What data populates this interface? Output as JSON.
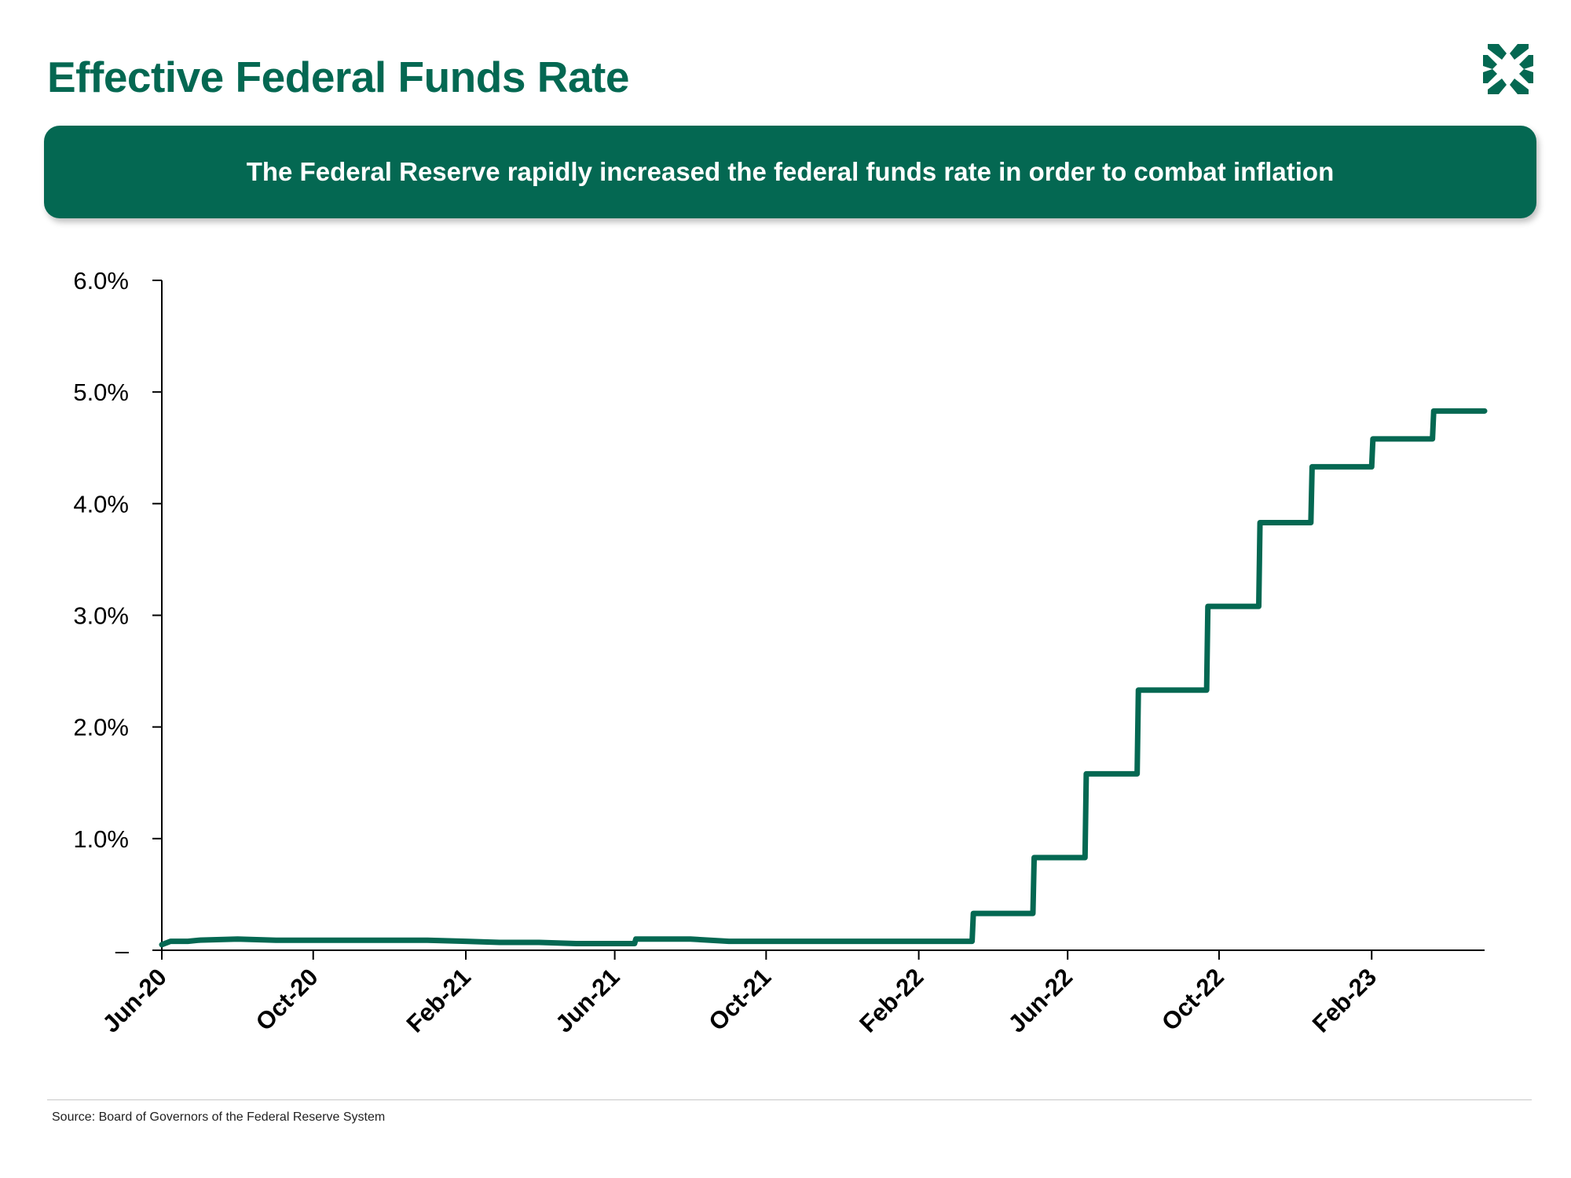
{
  "header": {
    "title": "Effective Federal Funds Rate",
    "subtitle": "The Federal Reserve rapidly increased the federal funds rate in order to combat inflation"
  },
  "footer": {
    "source": "Source: Board of Governors of the Federal Reserve System"
  },
  "colors": {
    "brand": "#046852",
    "axis": "#000000"
  },
  "logo": {
    "icon": "brand-logo-icon"
  },
  "chart_data": {
    "type": "line",
    "x_axis": {
      "kind": "date",
      "range": [
        "2020-06-01",
        "2023-05-03"
      ],
      "ticks": [
        {
          "date": "2020-06-01",
          "label": "Jun-20"
        },
        {
          "date": "2020-10-01",
          "label": "Oct-20"
        },
        {
          "date": "2021-02-01",
          "label": "Feb-21"
        },
        {
          "date": "2021-06-01",
          "label": "Jun-21"
        },
        {
          "date": "2021-10-01",
          "label": "Oct-21"
        },
        {
          "date": "2022-02-01",
          "label": "Feb-22"
        },
        {
          "date": "2022-06-01",
          "label": "Jun-22"
        },
        {
          "date": "2022-10-01",
          "label": "Oct-22"
        },
        {
          "date": "2023-02-01",
          "label": "Feb-23"
        }
      ]
    },
    "y_axis": {
      "range": [
        0,
        6
      ],
      "ticks": [
        {
          "value": 0,
          "label": "–"
        },
        {
          "value": 1,
          "label": "1.0%"
        },
        {
          "value": 2,
          "label": "2.0%"
        },
        {
          "value": 3,
          "label": "3.0%"
        },
        {
          "value": 4,
          "label": "4.0%"
        },
        {
          "value": 5,
          "label": "5.0%"
        },
        {
          "value": 6,
          "label": "6.0%"
        }
      ]
    },
    "grid": false,
    "legend": "none",
    "step": true,
    "series": [
      {
        "color": "#046852",
        "points": [
          [
            "2020-06-01",
            0.05
          ],
          [
            "2020-06-08",
            0.08
          ],
          [
            "2020-06-22",
            0.08
          ],
          [
            "2020-07-01",
            0.09
          ],
          [
            "2020-08-01",
            0.1
          ],
          [
            "2020-09-01",
            0.09
          ],
          [
            "2020-12-01",
            0.09
          ],
          [
            "2021-01-01",
            0.09
          ],
          [
            "2021-02-01",
            0.08
          ],
          [
            "2021-03-01",
            0.07
          ],
          [
            "2021-04-01",
            0.07
          ],
          [
            "2021-05-01",
            0.06
          ],
          [
            "2021-06-17",
            0.06
          ],
          [
            "2021-06-18",
            0.1
          ],
          [
            "2021-08-01",
            0.1
          ],
          [
            "2021-09-01",
            0.08
          ],
          [
            "2021-12-01",
            0.08
          ],
          [
            "2022-01-01",
            0.08
          ],
          [
            "2022-03-16",
            0.08
          ],
          [
            "2022-03-17",
            0.33
          ],
          [
            "2022-05-04",
            0.33
          ],
          [
            "2022-05-05",
            0.83
          ],
          [
            "2022-06-15",
            0.83
          ],
          [
            "2022-06-16",
            1.58
          ],
          [
            "2022-07-27",
            1.58
          ],
          [
            "2022-07-28",
            2.33
          ],
          [
            "2022-09-21",
            2.33
          ],
          [
            "2022-09-22",
            3.08
          ],
          [
            "2022-11-02",
            3.08
          ],
          [
            "2022-11-03",
            3.83
          ],
          [
            "2022-12-14",
            3.83
          ],
          [
            "2022-12-15",
            4.33
          ],
          [
            "2023-02-01",
            4.33
          ],
          [
            "2023-02-02",
            4.58
          ],
          [
            "2023-03-22",
            4.58
          ],
          [
            "2023-03-23",
            4.83
          ],
          [
            "2023-05-03",
            4.83
          ]
        ]
      }
    ]
  }
}
